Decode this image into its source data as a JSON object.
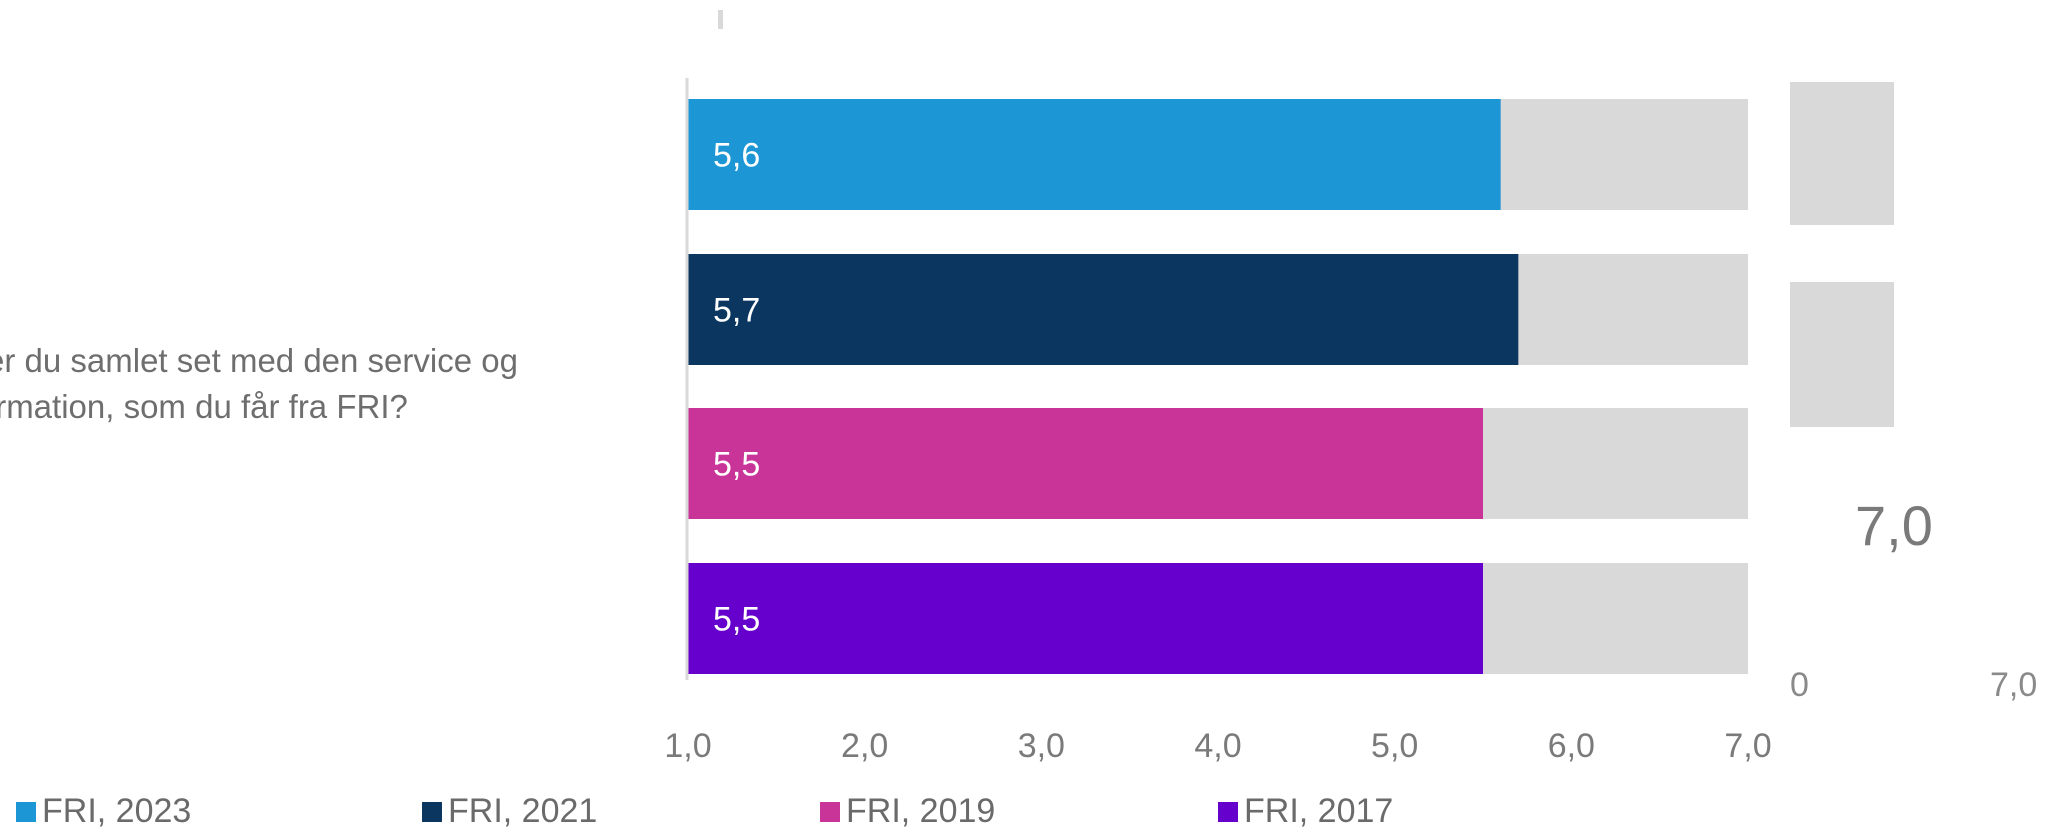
{
  "question": "ds er du samlet set med den service og information, som du får fra FRI?",
  "chart_data": {
    "type": "bar",
    "orientation": "horizontal",
    "categories": [
      "FRI, 2023",
      "FRI, 2021",
      "FRI, 2019",
      "FRI, 2017"
    ],
    "values": [
      5.6,
      5.7,
      5.5,
      5.5
    ],
    "value_labels": [
      "5,6",
      "5,7",
      "5,5",
      "5,5"
    ],
    "max_value": 7.0,
    "xlim": [
      1.0,
      7.0
    ],
    "x_ticks": [
      "1,0",
      "2,0",
      "3,0",
      "4,0",
      "5,0",
      "6,0",
      "7,0"
    ],
    "colors": [
      "#1c96d4",
      "#0a3660",
      "#c93498",
      "#6600cc"
    ],
    "track_color": "#d9d9d9",
    "legend_position": "bottom",
    "grid": false
  },
  "side_panel": {
    "big_value": "7,0",
    "small_left": "0",
    "small_right": "7,0"
  },
  "legend": [
    {
      "label": "FRI, 2023",
      "color": "#1c96d4"
    },
    {
      "label": "FRI, 2021",
      "color": "#0a3660"
    },
    {
      "label": "FRI, 2019",
      "color": "#c93498"
    },
    {
      "label": "FRI, 2017",
      "color": "#6600cc"
    }
  ]
}
